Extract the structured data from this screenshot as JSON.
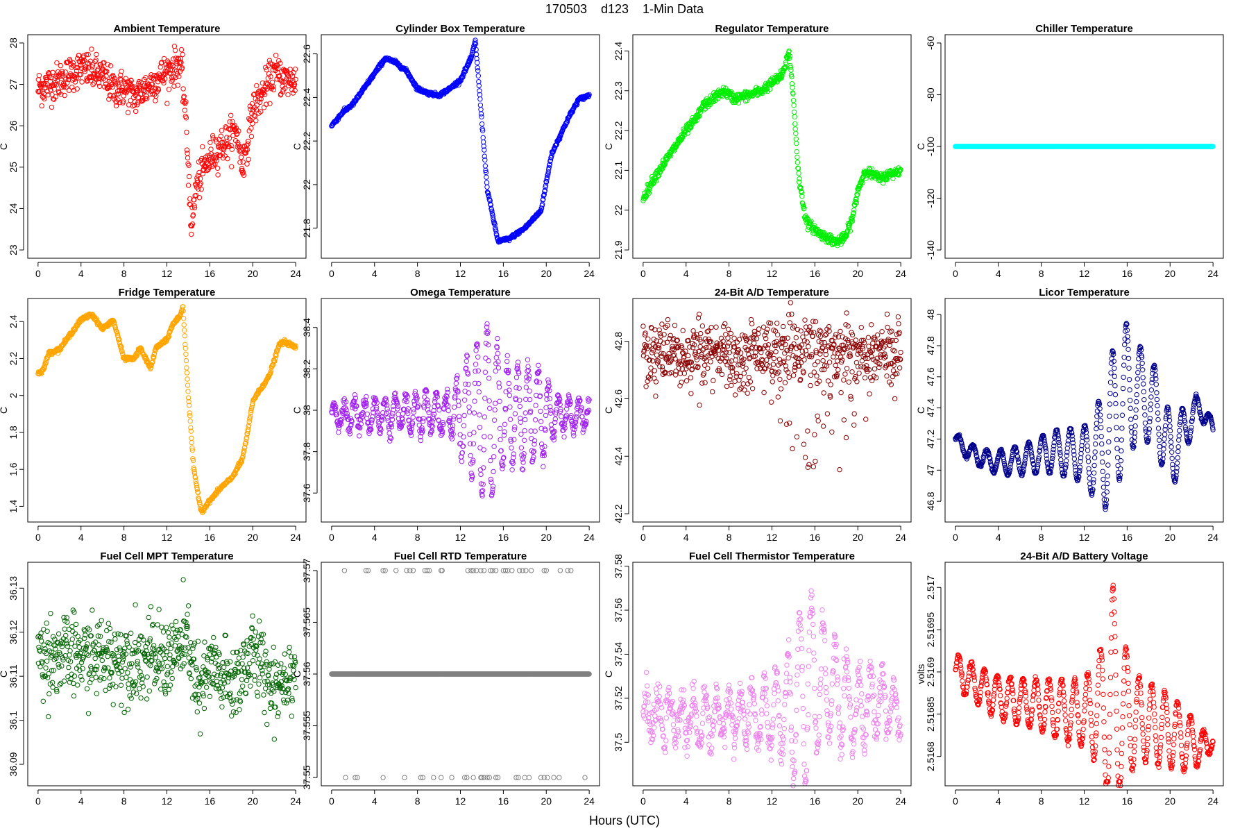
{
  "figure": {
    "title": "170503    d123    1-Min Data",
    "xlabel": "Hours (UTC)"
  },
  "chart_data": [
    {
      "id": "ambient",
      "type": "scatter",
      "title": "Ambient Temperature",
      "ylabel": "C",
      "color": "#ff0000",
      "xlim": [
        0,
        24
      ],
      "ylim": [
        23,
        28
      ],
      "yticks": [
        23,
        24,
        25,
        26,
        27,
        28
      ],
      "xticks": [
        0,
        4,
        8,
        12,
        16,
        20,
        24
      ],
      "shape": [
        [
          0,
          26.9
        ],
        [
          2,
          27.1
        ],
        [
          4,
          27.4
        ],
        [
          5,
          27.3
        ],
        [
          6,
          27.2
        ],
        [
          7,
          26.9
        ],
        [
          8,
          26.9
        ],
        [
          9,
          26.7
        ],
        [
          10,
          26.9
        ],
        [
          11,
          27.1
        ],
        [
          12,
          27.3
        ],
        [
          13.1,
          27.5
        ],
        [
          13.4,
          27.3
        ],
        [
          13.7,
          26.4
        ],
        [
          14,
          25.0
        ],
        [
          14.3,
          23.5
        ],
        [
          14.7,
          24.5
        ],
        [
          15.5,
          25.0
        ],
        [
          16.5,
          25.4
        ],
        [
          17.5,
          25.6
        ],
        [
          18.5,
          25.9
        ],
        [
          19,
          25.0
        ],
        [
          19.5,
          25.6
        ],
        [
          20,
          26.4
        ],
        [
          21,
          26.8
        ],
        [
          22,
          27.3
        ],
        [
          23,
          27.1
        ],
        [
          24,
          27.1
        ]
      ],
      "noise": 0.22
    },
    {
      "id": "cylinder",
      "type": "scatter",
      "title": "Cylinder Box Temperature",
      "ylabel": "C",
      "color": "#0000ff",
      "xlim": [
        0,
        24
      ],
      "ylim": [
        21.7,
        22.65
      ],
      "yticks": [
        21.8,
        22.0,
        22.2,
        22.4,
        22.6
      ],
      "xticks": [
        0,
        4,
        8,
        12,
        16,
        20,
        24
      ],
      "shape": [
        [
          0,
          22.27
        ],
        [
          1,
          22.33
        ],
        [
          2,
          22.37
        ],
        [
          3,
          22.44
        ],
        [
          4,
          22.51
        ],
        [
          5,
          22.58
        ],
        [
          6,
          22.56
        ],
        [
          7,
          22.52
        ],
        [
          8,
          22.44
        ],
        [
          9,
          22.42
        ],
        [
          10,
          22.41
        ],
        [
          11,
          22.44
        ],
        [
          12,
          22.48
        ],
        [
          13,
          22.58
        ],
        [
          13.4,
          22.66
        ],
        [
          13.9,
          22.35
        ],
        [
          14.5,
          21.98
        ],
        [
          15.5,
          21.74
        ],
        [
          16.5,
          21.75
        ],
        [
          18,
          21.8
        ],
        [
          19.5,
          21.88
        ],
        [
          20.5,
          22.14
        ],
        [
          22,
          22.3
        ],
        [
          23,
          22.39
        ],
        [
          24,
          22.41
        ]
      ],
      "noise": 0.004
    },
    {
      "id": "regulator",
      "type": "scatter",
      "title": "Regulator Temperature",
      "ylabel": "C",
      "color": "#00ee00",
      "xlim": [
        0,
        24
      ],
      "ylim": [
        21.9,
        22.42
      ],
      "yticks": [
        21.9,
        22.0,
        22.1,
        22.2,
        22.3,
        22.4
      ],
      "xticks": [
        0,
        4,
        8,
        12,
        16,
        20,
        24
      ],
      "shape": [
        [
          0,
          22.03
        ],
        [
          1,
          22.08
        ],
        [
          2,
          22.12
        ],
        [
          3,
          22.16
        ],
        [
          4,
          22.2
        ],
        [
          5,
          22.23
        ],
        [
          5.5,
          22.26
        ],
        [
          6.5,
          22.28
        ],
        [
          7.5,
          22.3
        ],
        [
          8.5,
          22.28
        ],
        [
          10,
          22.29
        ],
        [
          11,
          22.3
        ],
        [
          12,
          22.32
        ],
        [
          13,
          22.34
        ],
        [
          13.6,
          22.4
        ],
        [
          14,
          22.28
        ],
        [
          14.5,
          22.08
        ],
        [
          15.2,
          21.97
        ],
        [
          16.5,
          21.94
        ],
        [
          18,
          21.92
        ],
        [
          18.8,
          21.93
        ],
        [
          19.5,
          21.98
        ],
        [
          20,
          22.05
        ],
        [
          20.7,
          22.1
        ],
        [
          22,
          22.08
        ],
        [
          23,
          22.09
        ],
        [
          24,
          22.1
        ]
      ],
      "noise": 0.006
    },
    {
      "id": "chiller",
      "type": "scatter",
      "title": "Chiller Temperature",
      "ylabel": "C",
      "color": "#00ffff",
      "xlim": [
        0,
        24
      ],
      "ylim": [
        -140,
        -60
      ],
      "yticks": [
        -140,
        -120,
        -100,
        -80,
        -60
      ],
      "xticks": [
        0,
        4,
        8,
        12,
        16,
        20,
        24
      ],
      "shape": [
        [
          0,
          -100
        ],
        [
          24,
          -100
        ]
      ],
      "noise": 0
    },
    {
      "id": "fridge",
      "type": "scatter",
      "title": "Fridge Temperature",
      "ylabel": "C",
      "color": "#ffa500",
      "xlim": [
        0,
        24
      ],
      "ylim": [
        1.36,
        2.48
      ],
      "yticks": [
        1.4,
        1.6,
        1.8,
        2.0,
        2.2,
        2.4
      ],
      "xticks": [
        0,
        4,
        8,
        12,
        16,
        20,
        24
      ],
      "shape": [
        [
          0,
          2.12
        ],
        [
          0.5,
          2.14
        ],
        [
          1,
          2.23
        ],
        [
          2,
          2.25
        ],
        [
          3,
          2.33
        ],
        [
          4,
          2.41
        ],
        [
          5,
          2.44
        ],
        [
          5.5,
          2.4
        ],
        [
          6,
          2.36
        ],
        [
          7,
          2.41
        ],
        [
          8,
          2.2
        ],
        [
          9,
          2.2
        ],
        [
          9.5,
          2.26
        ],
        [
          10,
          2.2
        ],
        [
          10.5,
          2.15
        ],
        [
          11,
          2.26
        ],
        [
          12,
          2.3
        ],
        [
          12.5,
          2.38
        ],
        [
          13.2,
          2.43
        ],
        [
          13.5,
          2.48
        ],
        [
          14,
          2.0
        ],
        [
          14.5,
          1.6
        ],
        [
          15.2,
          1.37
        ],
        [
          16,
          1.43
        ],
        [
          17,
          1.5
        ],
        [
          18,
          1.55
        ],
        [
          19,
          1.65
        ],
        [
          19.5,
          1.79
        ],
        [
          20,
          1.97
        ],
        [
          21,
          2.06
        ],
        [
          21.5,
          2.1
        ],
        [
          22.5,
          2.28
        ],
        [
          23,
          2.29
        ],
        [
          24,
          2.26
        ]
      ],
      "noise": 0.005
    },
    {
      "id": "omega",
      "type": "scatter",
      "title": "Omega Temperature",
      "ylabel": "C",
      "color": "#a020f0",
      "xlim": [
        0,
        24
      ],
      "ylim": [
        37.5,
        38.5
      ],
      "yticks": [
        37.6,
        37.8,
        38.0,
        38.2,
        38.4
      ],
      "xticks": [
        0,
        4,
        8,
        12,
        16,
        20,
        24
      ],
      "shape": [
        [
          0,
          37.98
        ],
        [
          24,
          37.98
        ]
      ],
      "osc": {
        "period": 0.95,
        "amps": [
          [
            0,
            0.06
          ],
          [
            11,
            0.1
          ],
          [
            12.5,
            0.25
          ],
          [
            14.5,
            0.45
          ],
          [
            16,
            0.25
          ],
          [
            19.5,
            0.22
          ],
          [
            21,
            0.08
          ],
          [
            24,
            0.06
          ]
        ]
      },
      "noise": 0.02
    },
    {
      "id": "ad24temp",
      "type": "scatter",
      "title": "24-Bit A/D Temperature",
      "ylabel": "C",
      "color": "#8b0000",
      "xlim": [
        0,
        24
      ],
      "ylim": [
        42.2,
        42.92
      ],
      "yticks": [
        42.2,
        42.4,
        42.6,
        42.8
      ],
      "xticks": [
        0,
        4,
        8,
        12,
        16,
        20,
        24
      ],
      "shape": [
        [
          0,
          42.77
        ],
        [
          24,
          42.77
        ]
      ],
      "spikes": {
        "amps": [
          [
            0,
            0.1
          ],
          [
            12,
            0.15
          ],
          [
            14.5,
            0.55
          ],
          [
            16,
            0.35
          ],
          [
            19,
            0.3
          ],
          [
            20.5,
            0.25
          ],
          [
            22,
            0.08
          ],
          [
            24,
            0.08
          ]
        ]
      },
      "noise": 0.05
    },
    {
      "id": "licor",
      "type": "scatter",
      "title": "Licor Temperature",
      "ylabel": "C",
      "color": "#00008b",
      "xlim": [
        0,
        24
      ],
      "ylim": [
        46.72,
        48.05
      ],
      "yticks": [
        46.8,
        47.0,
        47.2,
        47.4,
        47.6,
        47.8,
        48.0
      ],
      "xticks": [
        0,
        4,
        8,
        12,
        16,
        20,
        24
      ],
      "shape": [
        [
          0,
          47.2
        ],
        [
          1,
          47.13
        ],
        [
          3,
          47.06
        ],
        [
          5,
          47.05
        ],
        [
          7,
          47.08
        ],
        [
          9,
          47.12
        ],
        [
          12,
          47.1
        ],
        [
          13,
          47.1
        ],
        [
          14,
          47.15
        ],
        [
          15,
          47.4
        ],
        [
          16,
          47.5
        ],
        [
          17.5,
          47.5
        ],
        [
          19,
          47.35
        ],
        [
          20,
          47.1
        ],
        [
          21,
          47.2
        ],
        [
          22,
          47.35
        ],
        [
          23,
          47.4
        ],
        [
          24,
          47.25
        ]
      ],
      "osc": {
        "period": 1.3,
        "amps": [
          [
            0,
            0.04
          ],
          [
            7,
            0.1
          ],
          [
            12,
            0.18
          ],
          [
            14.5,
            0.45
          ],
          [
            15.5,
            0.5
          ],
          [
            17,
            0.3
          ],
          [
            20,
            0.25
          ],
          [
            22,
            0.12
          ],
          [
            24,
            0.05
          ]
        ]
      },
      "noise": 0.005
    },
    {
      "id": "fcmpt",
      "type": "scatter",
      "title": "Fuel Cell MPT Temperature",
      "ylabel": "C",
      "color": "#006400",
      "xlim": [
        0,
        24
      ],
      "ylim": [
        36.087,
        36.134
      ],
      "yticks": [
        36.09,
        36.1,
        36.11,
        36.12,
        36.13
      ],
      "xticks": [
        0,
        4,
        8,
        12,
        16,
        20,
        24
      ],
      "shape": [
        [
          0,
          36.115
        ],
        [
          8,
          36.114
        ],
        [
          12,
          36.114
        ],
        [
          14,
          36.118
        ],
        [
          15,
          36.105
        ],
        [
          16,
          36.112
        ],
        [
          18,
          36.108
        ],
        [
          20,
          36.115
        ],
        [
          22,
          36.108
        ],
        [
          24,
          36.112
        ]
      ],
      "noise": 0.0045
    },
    {
      "id": "fcrtd",
      "type": "scatter",
      "title": "Fuel Cell RTD Temperature",
      "ylabel": "C",
      "color": "#808080",
      "xlim": [
        0,
        24
      ],
      "ylim": [
        37.55,
        37.57
      ],
      "yticks": [
        37.55,
        37.555,
        37.56,
        37.565,
        37.57
      ],
      "xticks": [
        0,
        4,
        8,
        12,
        16,
        20,
        24
      ],
      "shape": [
        [
          0,
          37.56
        ],
        [
          24,
          37.56
        ]
      ],
      "noise": 0,
      "outliers_high": [
        1.2,
        3.2,
        3.4,
        4.8,
        5.0,
        6.0,
        7.0,
        7.3,
        7.6,
        8.7,
        8.9,
        9.1,
        10.2,
        10.3,
        12.7,
        13.0,
        13.2,
        13.5,
        13.9,
        14.2,
        14.8,
        15.0,
        15.3,
        16.0,
        16.2,
        16.4,
        16.8,
        17.5,
        17.8,
        18.1,
        18.6,
        19.8,
        20.0,
        21.3,
        22.0,
        22.3
      ],
      "outliers_low": [
        1.3,
        2.2,
        2.4,
        4.8,
        6.8,
        8.3,
        8.5,
        9.5,
        10.2,
        11.2,
        12.4,
        12.6,
        13.2,
        13.9,
        14.0,
        14.2,
        14.5,
        14.7,
        15.3,
        15.5,
        17.2,
        17.4,
        18.0,
        18.4,
        19.5,
        19.8,
        20.1,
        20.7,
        21.2,
        23.6
      ]
    },
    {
      "id": "fcthermistor",
      "type": "scatter",
      "title": "Fuel Cell Thermistor Temperature",
      "ylabel": "C",
      "color": "#ee82ee",
      "xlim": [
        0,
        24
      ],
      "ylim": [
        37.484,
        37.578
      ],
      "yticks": [
        37.5,
        37.52,
        37.54,
        37.56,
        37.58
      ],
      "xticks": [
        0,
        4,
        8,
        12,
        16,
        20,
        24
      ],
      "shape": [
        [
          0,
          37.512
        ],
        [
          5,
          37.51
        ],
        [
          8,
          37.512
        ],
        [
          12,
          37.512
        ],
        [
          14,
          37.515
        ],
        [
          15.5,
          37.53
        ],
        [
          17,
          37.525
        ],
        [
          20,
          37.515
        ],
        [
          22,
          37.52
        ],
        [
          24,
          37.513
        ]
      ],
      "osc": {
        "period": 1.1,
        "amps": [
          [
            0,
            0.008
          ],
          [
            10,
            0.012
          ],
          [
            13,
            0.02
          ],
          [
            15,
            0.045
          ],
          [
            17,
            0.025
          ],
          [
            20,
            0.018
          ],
          [
            24,
            0.01
          ]
        ]
      },
      "noise": 0.004
    },
    {
      "id": "adbattery",
      "type": "scatter",
      "title": "24-Bit A/D Battery Voltage",
      "ylabel": "volts",
      "color": "#ff0000",
      "xlim": [
        0,
        24
      ],
      "ylim": [
        2.516775,
        2.51702
      ],
      "yticks": [
        2.5168,
        2.51685,
        2.5169,
        2.51695,
        2.517
      ],
      "xticks": [
        0,
        4,
        8,
        12,
        16,
        20,
        24
      ],
      "shape": [
        [
          0,
          2.5169
        ],
        [
          4,
          2.51687
        ],
        [
          8,
          2.51686
        ],
        [
          12,
          2.51685
        ],
        [
          14,
          2.51686
        ],
        [
          16,
          2.51685
        ],
        [
          20,
          2.51683
        ],
        [
          23,
          2.51681
        ],
        [
          24,
          2.51682
        ]
      ],
      "osc": {
        "period": 1.2,
        "amps": [
          [
            0,
            2e-05
          ],
          [
            8,
            3e-05
          ],
          [
            12,
            4e-05
          ],
          [
            13.5,
            7e-05
          ],
          [
            14.6,
            0.00015
          ],
          [
            15.5,
            9e-05
          ],
          [
            17,
            5e-05
          ],
          [
            21,
            4e-05
          ],
          [
            24,
            1e-05
          ]
        ]
      },
      "noise": 2e-06
    }
  ]
}
